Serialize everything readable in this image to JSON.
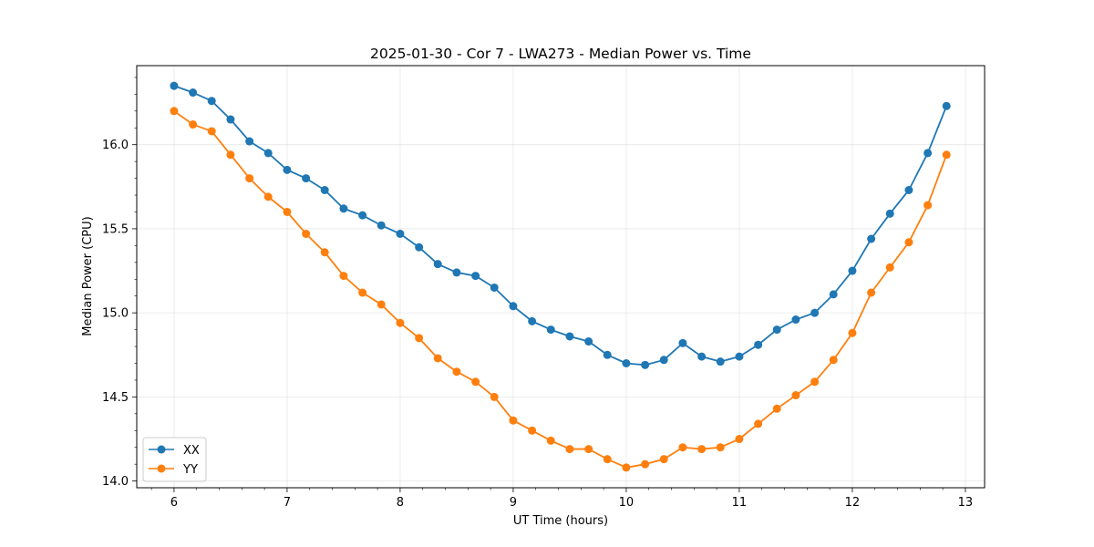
{
  "chart_data": {
    "type": "line",
    "title": "2025-01-30 - Cor 7 - LWA273 - Median Power vs. Time",
    "xlabel": "UT Time (hours)",
    "ylabel": "Median Power (CPU)",
    "xlim": [
      5.67,
      13.17
    ],
    "ylim": [
      13.96,
      16.47
    ],
    "xticks": [
      6,
      7,
      8,
      9,
      10,
      11,
      12,
      13
    ],
    "xtick_labels": [
      "6",
      "7",
      "8",
      "9",
      "10",
      "11",
      "12",
      "13"
    ],
    "yticks": [
      14.0,
      14.5,
      15.0,
      15.5,
      16.0
    ],
    "ytick_labels": [
      "14.0",
      "14.5",
      "15.0",
      "15.5",
      "16.0"
    ],
    "grid": true,
    "legend_position": "lower-left",
    "x": [
      6.0,
      6.167,
      6.333,
      6.5,
      6.667,
      6.833,
      7.0,
      7.167,
      7.333,
      7.5,
      7.667,
      7.833,
      8.0,
      8.167,
      8.333,
      8.5,
      8.667,
      8.833,
      9.0,
      9.167,
      9.333,
      9.5,
      9.667,
      9.833,
      10.0,
      10.167,
      10.333,
      10.5,
      10.667,
      10.833,
      11.0,
      11.167,
      11.333,
      11.5,
      11.667,
      11.833,
      12.0,
      12.167,
      12.333,
      12.5,
      12.667,
      12.833
    ],
    "series": [
      {
        "name": "XX",
        "color": "#1f77b4",
        "values": [
          16.35,
          16.31,
          16.26,
          16.15,
          16.02,
          15.95,
          15.85,
          15.8,
          15.73,
          15.62,
          15.58,
          15.52,
          15.47,
          15.39,
          15.29,
          15.24,
          15.22,
          15.15,
          15.04,
          14.95,
          14.9,
          14.86,
          14.83,
          14.75,
          14.7,
          14.69,
          14.72,
          14.82,
          14.74,
          14.71,
          14.74,
          14.81,
          14.9,
          14.96,
          15.0,
          15.11,
          15.25,
          15.44,
          15.59,
          15.73,
          15.95,
          16.23
        ]
      },
      {
        "name": "YY",
        "color": "#ff7f0e",
        "values": [
          16.2,
          16.12,
          16.08,
          15.94,
          15.8,
          15.69,
          15.6,
          15.47,
          15.36,
          15.22,
          15.12,
          15.05,
          14.94,
          14.85,
          14.73,
          14.65,
          14.59,
          14.5,
          14.36,
          14.3,
          14.24,
          14.19,
          14.19,
          14.13,
          14.08,
          14.1,
          14.13,
          14.2,
          14.19,
          14.2,
          14.25,
          14.34,
          14.43,
          14.51,
          14.59,
          14.72,
          14.88,
          15.12,
          15.27,
          15.42,
          15.64,
          15.94
        ]
      }
    ]
  }
}
